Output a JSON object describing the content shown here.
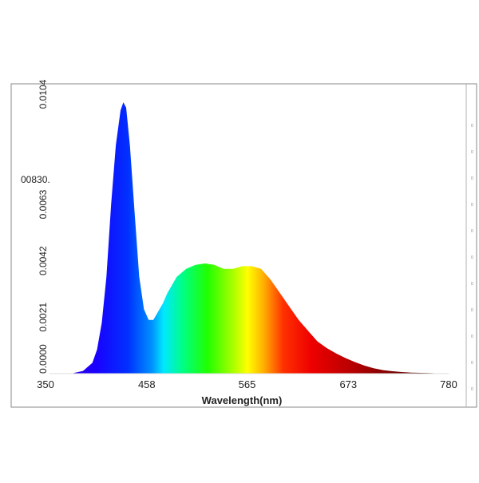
{
  "chart_data": {
    "type": "area",
    "title": "",
    "xlabel": "Wavelength(nm)",
    "ylabel": "",
    "stray_label": "00830.",
    "xlim": [
      350,
      780
    ],
    "ylim": [
      0,
      0.0104
    ],
    "x_ticks": [
      "350",
      "458",
      "565",
      "673",
      "780"
    ],
    "x_tick_values": [
      350,
      458,
      565,
      673,
      780
    ],
    "y_ticks": [
      "0.0000",
      "0.0021",
      "0.0042",
      "0.0063",
      "0.0104"
    ],
    "y_tick_values": [
      0,
      0.0021,
      0.0042,
      0.0063,
      0.0104
    ],
    "right_ticks": [
      "0",
      "0",
      "0",
      "0",
      "0",
      "0",
      "0",
      "0",
      "0",
      "0",
      "0"
    ],
    "colors": {
      "frame": "#888888",
      "background": "#ffffff"
    },
    "series": [
      {
        "x": [
          380,
          390,
          400,
          405,
          410,
          415,
          420,
          425,
          430,
          433,
          436,
          440,
          445,
          450,
          455,
          460,
          465,
          470,
          475,
          480,
          490,
          500,
          510,
          520,
          530,
          540,
          550,
          560,
          570,
          580,
          590,
          600,
          610,
          620,
          630,
          640,
          650,
          660,
          670,
          680,
          690,
          700,
          710,
          720,
          730,
          740,
          750,
          760,
          770,
          780
        ],
        "y": [
          2e-05,
          0.0001,
          0.0004,
          0.0009,
          0.0019,
          0.0036,
          0.0063,
          0.0085,
          0.0098,
          0.0101,
          0.0099,
          0.0085,
          0.006,
          0.0036,
          0.0024,
          0.002,
          0.002,
          0.0023,
          0.0026,
          0.003,
          0.0036,
          0.0039,
          0.00405,
          0.0041,
          0.00405,
          0.0039,
          0.0039,
          0.004,
          0.004,
          0.0039,
          0.0035,
          0.003,
          0.0025,
          0.002,
          0.0016,
          0.0012,
          0.00095,
          0.00075,
          0.00058,
          0.00043,
          0.0003,
          0.0002,
          0.00013,
          9e-05,
          6e-05,
          4e-05,
          3e-05,
          2e-05,
          1e-05,
          0
        ]
      }
    ]
  }
}
